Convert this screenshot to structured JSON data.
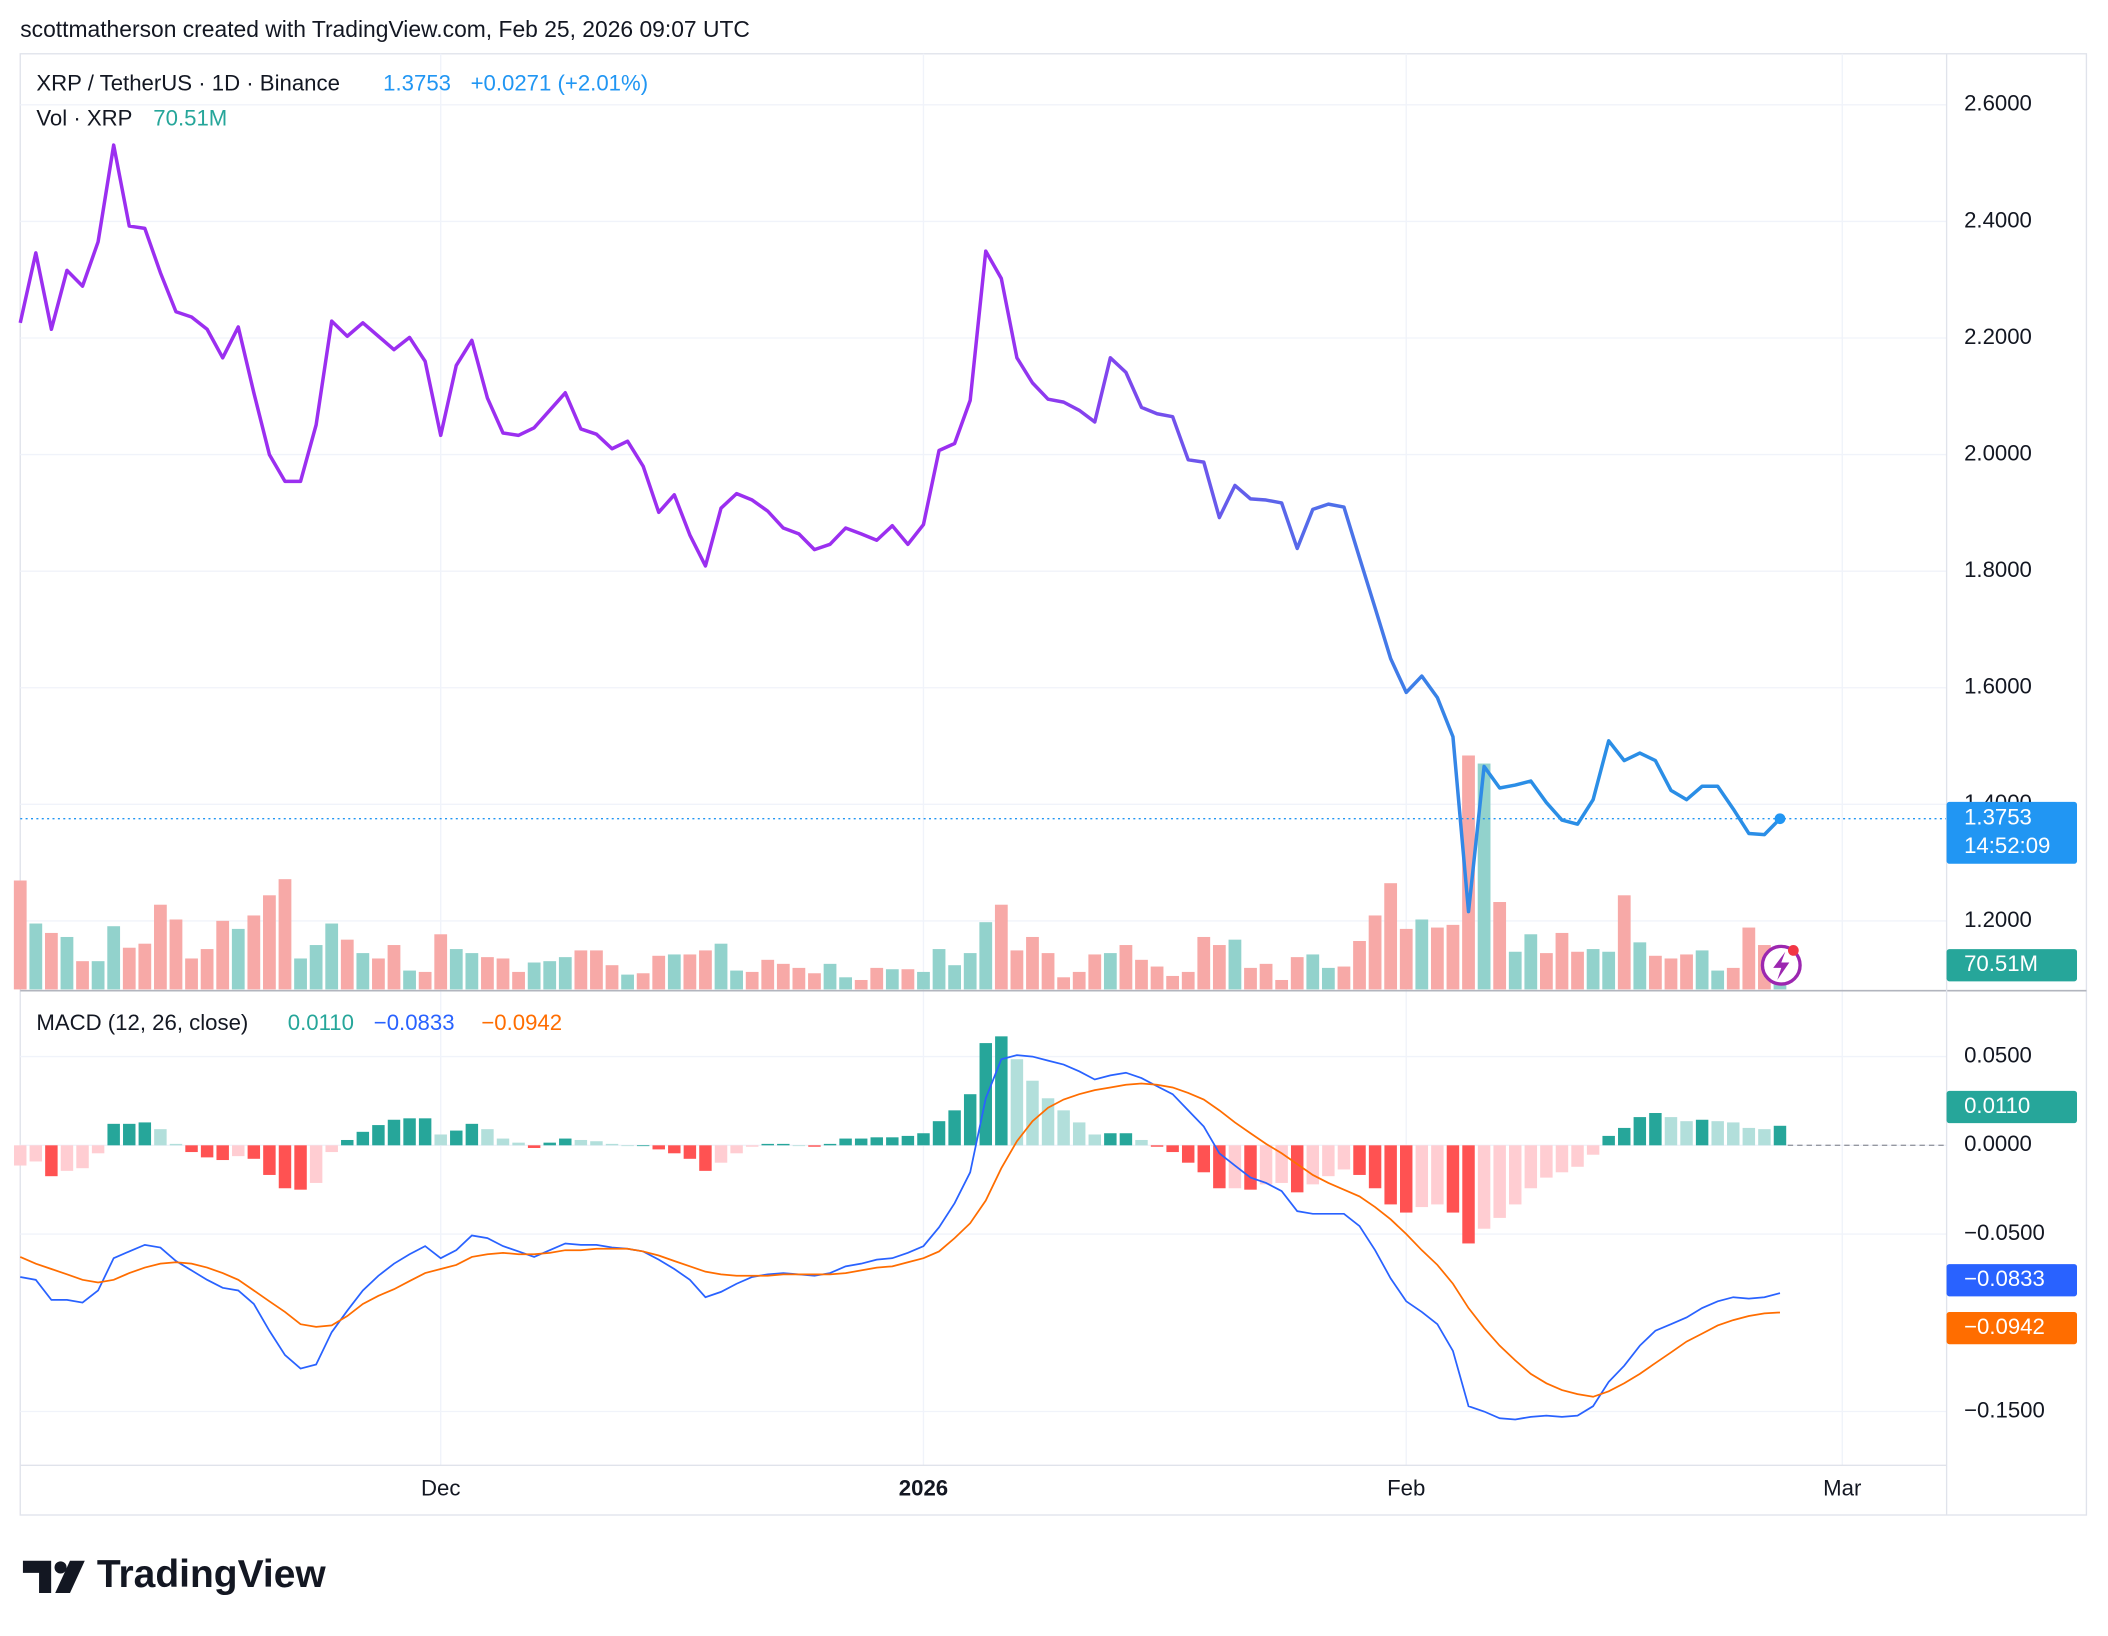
{
  "header": "scottmatherson created with TradingView.com, Feb 25, 2026 09:07 UTC",
  "brand": "TradingView",
  "chart_data": {
    "type": "line",
    "title": "XRP / TetherUS · 1D · Binance",
    "change_label": "+0.0271 (+2.01%)",
    "countdown": "14:52:09",
    "colors": [
      "#9b2ff0",
      "#2b8ee6"
    ],
    "last_color": "#2196f3",
    "grid": true,
    "xlim": [
      0,
      123.7
    ],
    "xticks": [
      {
        "value": 27,
        "label": "Dec"
      },
      {
        "value": 58,
        "label": "2026"
      },
      {
        "value": 89,
        "label": "Feb"
      },
      {
        "value": 117,
        "label": "Mar"
      }
    ],
    "ylim": [
      1.0802,
      2.6876
    ],
    "yticks": [
      {
        "value": 2.6,
        "label": "2.6000"
      },
      {
        "value": 2.4,
        "label": "2.4000"
      },
      {
        "value": 2.2,
        "label": "2.2000"
      },
      {
        "value": 2.0,
        "label": "2.0000"
      },
      {
        "value": 1.8,
        "label": "1.8000"
      },
      {
        "value": 1.6,
        "label": "1.6000"
      },
      {
        "value": 1.4,
        "label": "1.4000"
      },
      {
        "value": 1.2,
        "label": "1.2000"
      }
    ],
    "values": [
      2.226,
      2.346,
      2.215,
      2.316,
      2.289,
      2.365,
      2.531,
      2.392,
      2.388,
      2.312,
      2.245,
      2.236,
      2.215,
      2.166,
      2.219,
      2.106,
      2.0,
      1.954,
      1.954,
      2.051,
      2.229,
      2.203,
      2.226,
      2.203,
      2.18,
      2.201,
      2.16,
      2.033,
      2.153,
      2.196,
      2.097,
      2.037,
      2.033,
      2.046,
      2.076,
      2.106,
      2.044,
      2.035,
      2.01,
      2.023,
      1.98,
      1.901,
      1.931,
      1.862,
      1.809,
      1.908,
      1.933,
      1.922,
      1.903,
      1.874,
      1.864,
      1.837,
      1.846,
      1.874,
      1.864,
      1.853,
      1.878,
      1.846,
      1.88,
      2.007,
      2.019,
      2.093,
      2.349,
      2.302,
      2.166,
      2.123,
      2.095,
      2.09,
      2.076,
      2.056,
      2.166,
      2.141,
      2.081,
      2.07,
      2.065,
      1.991,
      1.987,
      1.892,
      1.947,
      1.924,
      1.922,
      1.917,
      1.839,
      1.906,
      1.915,
      1.91,
      1.823,
      1.737,
      1.65,
      1.592,
      1.62,
      1.583,
      1.516,
      1.216,
      1.465,
      1.428,
      1.433,
      1.44,
      1.403,
      1.373,
      1.366,
      1.408,
      1.509,
      1.475,
      1.488,
      1.475,
      1.424,
      1.408,
      1.431,
      1.431,
      1.392,
      1.35,
      1.348,
      1.3753
    ],
    "volume": {
      "name": "Vol · XRP",
      "last_label": "70.51M",
      "label_color": "#26a69a",
      "up_color": "#92d2cc",
      "down_color": "#f7a9a7",
      "values": [
        283.5,
        171.5,
        147,
        136.5,
        73.5,
        73.5,
        164.5,
        108.5,
        119,
        220.5,
        182,
        80.5,
        105,
        178.5,
        157.5,
        192.5,
        245,
        287,
        80.5,
        115.5,
        171.5,
        129.5,
        94.5,
        80.5,
        115.5,
        49,
        45.5,
        143.5,
        105,
        94.5,
        84,
        80.5,
        45.5,
        70,
        73.5,
        84,
        101.5,
        101.5,
        63,
        38.5,
        42,
        87.5,
        91,
        91,
        101.5,
        119,
        49,
        45.5,
        77,
        66.5,
        56,
        42,
        66.5,
        31.5,
        24.5,
        56,
        52.5,
        52.5,
        45.5,
        105,
        63,
        94.5,
        175,
        220.5,
        101.5,
        136.5,
        94.5,
        31.5,
        45.5,
        91,
        94.5,
        115.5,
        77,
        59.5,
        35,
        45.5,
        136.5,
        115.5,
        129.5,
        56,
        66.5,
        24.5,
        84,
        91,
        56,
        59.5,
        126,
        192.5,
        276.5,
        157.5,
        182,
        161,
        168,
        609,
        588,
        227.5,
        98,
        143.5,
        94.5,
        147,
        98,
        105,
        98,
        245,
        122.5,
        87.5,
        80.5,
        91,
        101.5,
        49,
        56,
        161,
        115.5,
        70.51
      ]
    },
    "macd": {
      "name": "MACD (12, 26, close)",
      "ylim": [
        -0.1803,
        0.0871
      ],
      "yticks": [
        {
          "value": 0.05,
          "label": "0.0500"
        },
        {
          "value": 0,
          "label": "0.0000"
        },
        {
          "value": -0.05,
          "label": "−0.0500"
        },
        {
          "value": -0.15,
          "label": "−0.1500"
        }
      ],
      "histogram": {
        "last_label": "0.0110",
        "colors": [
          "#26a69a",
          "#b2dfdb",
          "#ff5252",
          "#ffcdd2"
        ],
        "values": [
          -0.0114,
          -0.0091,
          -0.0174,
          -0.0144,
          -0.0129,
          -0.0045,
          0.0121,
          0.0121,
          0.0129,
          0.0091,
          0.0008,
          -0.0038,
          -0.0068,
          -0.0083,
          -0.0061,
          -0.0076,
          -0.0167,
          -0.0242,
          -0.025,
          -0.0212,
          -0.0038,
          0.003,
          0.0076,
          0.0114,
          0.0144,
          0.0152,
          0.0152,
          0.0061,
          0.0083,
          0.0121,
          0.0091,
          0.0038,
          0.0015,
          -0.0015,
          0.0015,
          0.0038,
          0.003,
          0.0023,
          0.0008,
          0,
          0,
          -0.0023,
          -0.0045,
          -0.0076,
          -0.0144,
          -0.0098,
          -0.0045,
          -0.0008,
          0.0008,
          0.0008,
          0,
          -0.0008,
          0.0008,
          0.0038,
          0.0038,
          0.0045,
          0.0045,
          0.0053,
          0.0068,
          0.0136,
          0.0197,
          0.0288,
          0.0576,
          0.0614,
          0.0485,
          0.0364,
          0.0265,
          0.0197,
          0.0129,
          0.0061,
          0.0068,
          0.0068,
          0.003,
          -0.0008,
          -0.0038,
          -0.0098,
          -0.0152,
          -0.0242,
          -0.0242,
          -0.025,
          -0.022,
          -0.0212,
          -0.0265,
          -0.022,
          -0.0174,
          -0.0136,
          -0.0167,
          -0.0242,
          -0.0333,
          -0.0379,
          -0.0348,
          -0.0333,
          -0.0379,
          -0.0553,
          -0.047,
          -0.0409,
          -0.0333,
          -0.0242,
          -0.0182,
          -0.0152,
          -0.0121,
          -0.0053,
          0.0053,
          0.0098,
          0.0159,
          0.0182,
          0.0159,
          0.0136,
          0.0144,
          0.0136,
          0.0129,
          0.0098,
          0.0091,
          0.011
        ]
      },
      "lines": [
        {
          "color": "#2962ff",
          "last_label": "−0.0833",
          "values": [
            -0.0742,
            -0.0758,
            -0.0871,
            -0.0871,
            -0.0886,
            -0.0818,
            -0.0636,
            -0.0598,
            -0.0561,
            -0.0576,
            -0.0652,
            -0.0705,
            -0.0758,
            -0.0803,
            -0.0818,
            -0.0894,
            -0.1045,
            -0.1182,
            -0.1258,
            -0.1235,
            -0.1053,
            -0.0932,
            -0.0818,
            -0.0735,
            -0.0667,
            -0.0614,
            -0.0568,
            -0.0636,
            -0.0591,
            -0.0508,
            -0.0523,
            -0.0568,
            -0.0598,
            -0.0629,
            -0.0591,
            -0.0553,
            -0.0561,
            -0.0561,
            -0.0576,
            -0.0583,
            -0.0598,
            -0.0644,
            -0.0697,
            -0.0758,
            -0.0856,
            -0.0826,
            -0.078,
            -0.0742,
            -0.0727,
            -0.072,
            -0.0727,
            -0.0735,
            -0.072,
            -0.0682,
            -0.0667,
            -0.0644,
            -0.0636,
            -0.0606,
            -0.0568,
            -0.0462,
            -0.0326,
            -0.0152,
            0.0265,
            0.0485,
            0.0508,
            0.05,
            0.0477,
            0.0455,
            0.0417,
            0.0371,
            0.0394,
            0.0409,
            0.0379,
            0.0333,
            0.0288,
            0.0197,
            0.0106,
            -0.0045,
            -0.0114,
            -0.0182,
            -0.0212,
            -0.0258,
            -0.0371,
            -0.0386,
            -0.0386,
            -0.0386,
            -0.0455,
            -0.0591,
            -0.075,
            -0.0879,
            -0.0939,
            -0.1008,
            -0.1159,
            -0.147,
            -0.15,
            -0.1538,
            -0.1545,
            -0.153,
            -0.1523,
            -0.153,
            -0.1523,
            -0.147,
            -0.1333,
            -0.1242,
            -0.1129,
            -0.1045,
            -0.1008,
            -0.097,
            -0.0917,
            -0.0879,
            -0.0856,
            -0.0864,
            -0.0856,
            -0.0833
          ]
        },
        {
          "color": "#ff6d00",
          "last_label": "−0.0942",
          "values": [
            -0.0629,
            -0.0667,
            -0.0697,
            -0.0727,
            -0.0758,
            -0.0773,
            -0.0758,
            -0.072,
            -0.0689,
            -0.0667,
            -0.0659,
            -0.0667,
            -0.0689,
            -0.072,
            -0.0758,
            -0.0818,
            -0.0879,
            -0.0939,
            -0.1008,
            -0.1023,
            -0.1015,
            -0.0962,
            -0.0894,
            -0.0848,
            -0.0811,
            -0.0765,
            -0.072,
            -0.0697,
            -0.0674,
            -0.0629,
            -0.0614,
            -0.0606,
            -0.0614,
            -0.0614,
            -0.0606,
            -0.0591,
            -0.0591,
            -0.0583,
            -0.0583,
            -0.0583,
            -0.0598,
            -0.0621,
            -0.0652,
            -0.0682,
            -0.0712,
            -0.0727,
            -0.0735,
            -0.0735,
            -0.0735,
            -0.0727,
            -0.0727,
            -0.0727,
            -0.0727,
            -0.072,
            -0.0705,
            -0.0689,
            -0.0682,
            -0.0659,
            -0.0636,
            -0.0598,
            -0.0523,
            -0.0439,
            -0.0311,
            -0.0129,
            0.0023,
            0.0136,
            0.0212,
            0.0258,
            0.0288,
            0.0311,
            0.0326,
            0.0341,
            0.0348,
            0.0341,
            0.0326,
            0.0295,
            0.0258,
            0.0197,
            0.0129,
            0.0068,
            0.0008,
            -0.0045,
            -0.0106,
            -0.0167,
            -0.0212,
            -0.025,
            -0.0288,
            -0.0348,
            -0.0417,
            -0.05,
            -0.0591,
            -0.0674,
            -0.078,
            -0.0917,
            -0.103,
            -0.1129,
            -0.1212,
            -0.1288,
            -0.1341,
            -0.1379,
            -0.1402,
            -0.1417,
            -0.1386,
            -0.1341,
            -0.1288,
            -0.1227,
            -0.1167,
            -0.1106,
            -0.1061,
            -0.1015,
            -0.0985,
            -0.0962,
            -0.0947,
            -0.0942
          ]
        }
      ]
    }
  }
}
